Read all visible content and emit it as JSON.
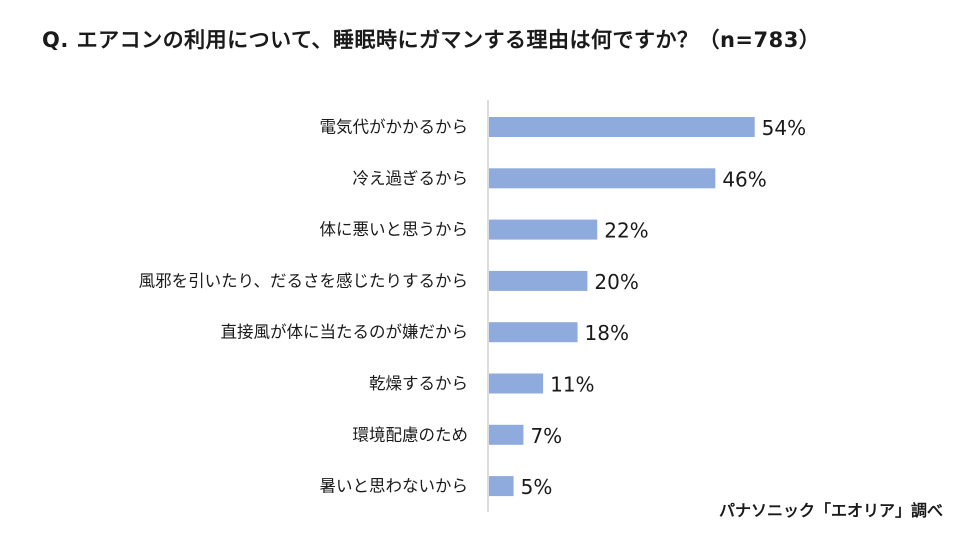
{
  "chart_data": {
    "type": "bar",
    "orientation": "horizontal",
    "title": "Q. エアコンの利用について、睡眠時にガマンする理由は何ですか？（n=783）",
    "categories": [
      "電気代がかかるから",
      "冷え過ぎるから",
      "体に悪いと思うから",
      "風邪を引いたり、だるさを感じたりするから",
      "直接風が体に当たるのが嫌だから",
      "乾燥するから",
      "環境配慮のため",
      "暑いと思わないから"
    ],
    "values": [
      54,
      46,
      22,
      20,
      18,
      11,
      7,
      5
    ],
    "value_labels": [
      "54%",
      "46%",
      "22%",
      "20%",
      "18%",
      "11%",
      "7%",
      "5%"
    ],
    "unit": "%",
    "xlim": [
      0,
      100
    ],
    "grid": false,
    "bar_color": "#8faadc",
    "axis_color": "#d0d0d0",
    "source": "パナソニック「エオリア」調べ"
  }
}
